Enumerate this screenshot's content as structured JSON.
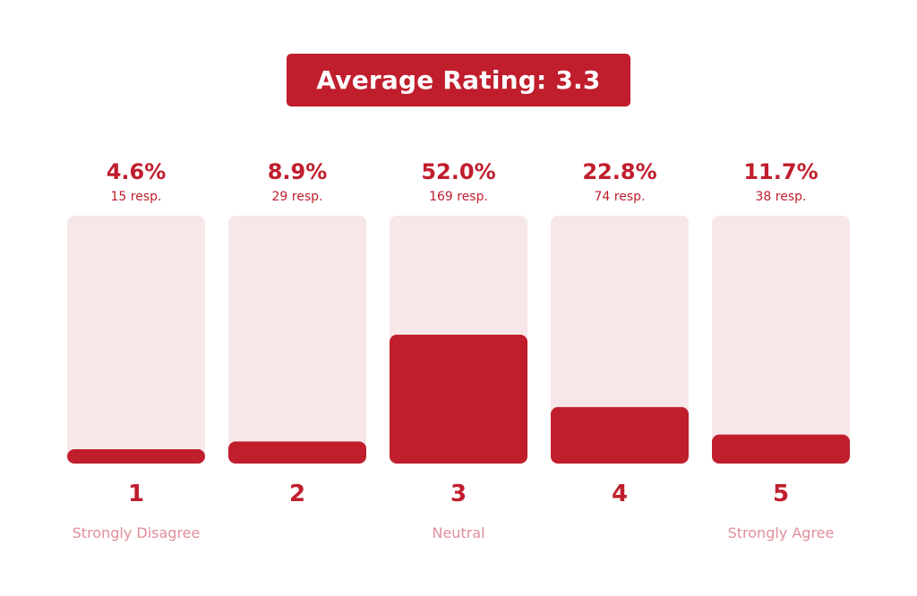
{
  "header": {
    "title": "Average Rating: 3.3"
  },
  "colors": {
    "accent": "#c01e2d",
    "track": "#f7e7e8",
    "anchor_text": "#e08f98"
  },
  "chart_data": {
    "type": "bar",
    "categories": [
      "1",
      "2",
      "3",
      "4",
      "5"
    ],
    "values": [
      4.6,
      8.9,
      52.0,
      22.8,
      11.7
    ],
    "value_labels": [
      "4.6%",
      "8.9%",
      "52.0%",
      "22.8%",
      "11.7%"
    ],
    "responses": [
      15,
      29,
      169,
      74,
      38
    ],
    "response_labels": [
      "15 resp.",
      "29 resp.",
      "169 resp.",
      "74 resp.",
      "38 resp."
    ],
    "anchor_labels": [
      "Strongly Disagree",
      "",
      "Neutral",
      "",
      "Strongly Agree"
    ],
    "ylim": [
      0,
      100
    ],
    "grid": false
  }
}
